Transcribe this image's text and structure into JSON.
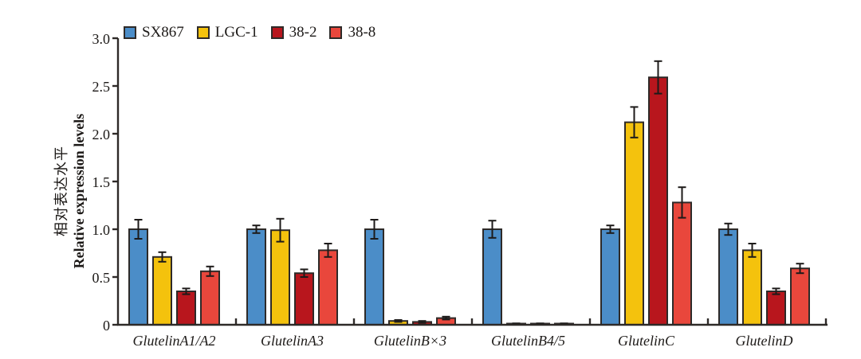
{
  "chart_data": {
    "type": "bar",
    "title": "",
    "ylabel_cn": "相对表达水平",
    "ylabel_en": "Relative expression levels",
    "xlabel": "",
    "ylim": [
      0,
      3.0
    ],
    "ytick_step": 0.5,
    "ytick_labels": [
      "0",
      "0.5",
      "1.0",
      "1.5",
      "2.0",
      "2.5",
      "3.0"
    ],
    "grid": false,
    "legend_position": "top-left-inside",
    "axis_color": "#2e2a28",
    "error_bar_color": "#1d1a19",
    "categories": [
      "GlutelinA1/A2",
      "GlutelinA3",
      "GlutelinB×3",
      "GlutelinB4/5",
      "GlutelinC",
      "GlutelinD"
    ],
    "series": [
      {
        "name": "SX867",
        "color": "#4B8DC8",
        "values": [
          1.0,
          1.0,
          1.0,
          1.0,
          1.0,
          1.0
        ],
        "errors": [
          0.1,
          0.04,
          0.1,
          0.09,
          0.04,
          0.06
        ]
      },
      {
        "name": "LGC-1",
        "color": "#F4C20D",
        "values": [
          0.71,
          0.99,
          0.04,
          0.01,
          2.12,
          0.78
        ],
        "errors": [
          0.05,
          0.12,
          0.01,
          0.005,
          0.16,
          0.07
        ]
      },
      {
        "name": "38-2",
        "color": "#B8161D",
        "values": [
          0.35,
          0.54,
          0.03,
          0.01,
          2.59,
          0.35
        ],
        "errors": [
          0.03,
          0.04,
          0.01,
          0.005,
          0.17,
          0.03
        ]
      },
      {
        "name": "38-8",
        "color": "#E9473C",
        "values": [
          0.56,
          0.78,
          0.07,
          0.01,
          1.28,
          0.59
        ],
        "errors": [
          0.05,
          0.07,
          0.015,
          0.005,
          0.16,
          0.05
        ]
      }
    ]
  }
}
